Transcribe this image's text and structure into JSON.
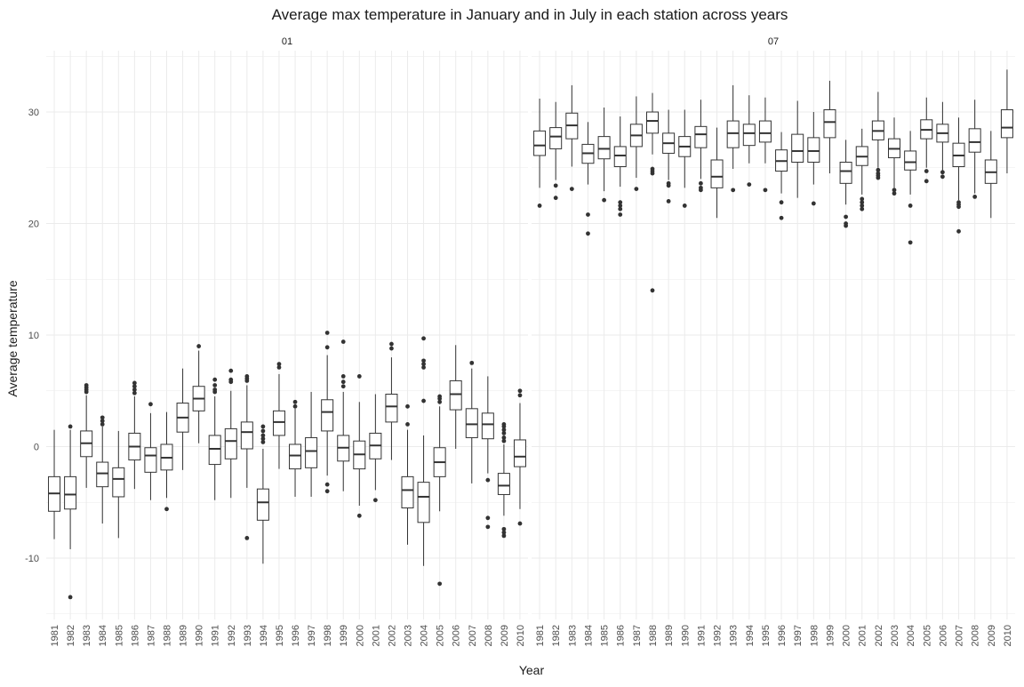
{
  "chart_data": {
    "type": "boxplot",
    "title": "Average max temperature in January and in July in each station across years",
    "xlabel": "Year",
    "ylabel": "Average temperature",
    "ylim": [
      -15.5,
      35.5
    ],
    "yticks": [
      -10,
      0,
      10,
      20,
      30
    ],
    "grid": true,
    "legend": "none",
    "box_color": "#333333",
    "grid_color": "#ebebeb",
    "categories": [
      "1981",
      "1982",
      "1983",
      "1984",
      "1985",
      "1986",
      "1987",
      "1988",
      "1989",
      "1990",
      "1991",
      "1992",
      "1993",
      "1994",
      "1995",
      "1996",
      "1997",
      "1998",
      "1999",
      "2000",
      "2001",
      "2002",
      "2003",
      "2004",
      "2005",
      "2006",
      "2007",
      "2008",
      "2009",
      "2010"
    ],
    "facets": [
      {
        "label": "01",
        "boxes": [
          {
            "year": "1981",
            "min": -8.3,
            "q1": -5.8,
            "median": -4.2,
            "q3": -2.7,
            "max": 1.5,
            "outliers": []
          },
          {
            "year": "1982",
            "min": -9.2,
            "q1": -5.6,
            "median": -4.3,
            "q3": -2.7,
            "max": 1.5,
            "outliers": [
              1.8,
              -13.5
            ]
          },
          {
            "year": "1983",
            "min": -3.7,
            "q1": -0.9,
            "median": 0.3,
            "q3": 1.4,
            "max": 4.6,
            "outliers": [
              5.5,
              5.3,
              5.1,
              4.9
            ]
          },
          {
            "year": "1984",
            "min": -6.9,
            "q1": -3.6,
            "median": -2.4,
            "q3": -1.4,
            "max": 1.8,
            "outliers": [
              2.6,
              2.3,
              2.0
            ]
          },
          {
            "year": "1985",
            "min": -8.2,
            "q1": -4.5,
            "median": -2.9,
            "q3": -1.9,
            "max": 1.4,
            "outliers": []
          },
          {
            "year": "1986",
            "min": -3.8,
            "q1": -1.2,
            "median": 0.0,
            "q3": 1.2,
            "max": 4.5,
            "outliers": [
              5.7,
              5.4,
              5.1,
              4.8
            ]
          },
          {
            "year": "1987",
            "min": -4.8,
            "q1": -2.3,
            "median": -0.8,
            "q3": -0.1,
            "max": 3.0,
            "outliers": [
              3.8
            ]
          },
          {
            "year": "1988",
            "min": -4.6,
            "q1": -2.1,
            "median": -1.0,
            "q3": 0.2,
            "max": 3.1,
            "outliers": [
              -5.6
            ]
          },
          {
            "year": "1989",
            "min": -2.1,
            "q1": 1.3,
            "median": 2.6,
            "q3": 3.9,
            "max": 7.0,
            "outliers": []
          },
          {
            "year": "1990",
            "min": 0.3,
            "q1": 3.2,
            "median": 4.3,
            "q3": 5.4,
            "max": 8.6,
            "outliers": [
              9.0
            ]
          },
          {
            "year": "1991",
            "min": -4.8,
            "q1": -1.6,
            "median": -0.2,
            "q3": 1.0,
            "max": 4.5,
            "outliers": [
              6.0,
              5.5,
              5.1,
              4.9
            ]
          },
          {
            "year": "1992",
            "min": -4.6,
            "q1": -1.1,
            "median": 0.5,
            "q3": 1.6,
            "max": 5.0,
            "outliers": [
              6.8,
              6.0,
              5.8
            ]
          },
          {
            "year": "1993",
            "min": -3.7,
            "q1": -0.2,
            "median": 1.3,
            "q3": 2.2,
            "max": 5.5,
            "outliers": [
              6.3,
              6.1,
              5.9,
              -8.2
            ]
          },
          {
            "year": "1994",
            "min": -10.5,
            "q1": -6.6,
            "median": -5.0,
            "q3": -3.8,
            "max": -0.2,
            "outliers": [
              1.8,
              1.4,
              1.0,
              0.7,
              0.4
            ]
          },
          {
            "year": "1995",
            "min": -2.0,
            "q1": 1.0,
            "median": 2.2,
            "q3": 3.2,
            "max": 6.5,
            "outliers": [
              7.4,
              7.1
            ]
          },
          {
            "year": "1996",
            "min": -4.5,
            "q1": -2.0,
            "median": -0.8,
            "q3": 0.2,
            "max": 3.4,
            "outliers": [
              4.0,
              3.6
            ]
          },
          {
            "year": "1997",
            "min": -4.5,
            "q1": -1.9,
            "median": -0.4,
            "q3": 0.8,
            "max": 4.9,
            "outliers": []
          },
          {
            "year": "1998",
            "min": -2.6,
            "q1": 1.4,
            "median": 3.1,
            "q3": 4.2,
            "max": 8.2,
            "outliers": [
              10.2,
              8.9,
              -3.4,
              -4.0
            ]
          },
          {
            "year": "1999",
            "min": -4.0,
            "q1": -1.3,
            "median": -0.1,
            "q3": 1.0,
            "max": 4.9,
            "outliers": [
              9.4,
              6.3,
              5.8,
              5.4
            ]
          },
          {
            "year": "2000",
            "min": -5.3,
            "q1": -2.0,
            "median": -0.7,
            "q3": 0.5,
            "max": 4.0,
            "outliers": [
              6.3,
              -6.2
            ]
          },
          {
            "year": "2001",
            "min": -3.9,
            "q1": -1.1,
            "median": 0.1,
            "q3": 1.2,
            "max": 4.7,
            "outliers": [
              -4.8
            ]
          },
          {
            "year": "2002",
            "min": -1.2,
            "q1": 2.2,
            "median": 3.6,
            "q3": 4.7,
            "max": 8.0,
            "outliers": [
              9.2,
              8.8
            ]
          },
          {
            "year": "2003",
            "min": -8.8,
            "q1": -5.5,
            "median": -3.9,
            "q3": -2.7,
            "max": 1.5,
            "outliers": [
              3.6,
              2.0
            ]
          },
          {
            "year": "2004",
            "min": -10.7,
            "q1": -6.8,
            "median": -4.5,
            "q3": -3.2,
            "max": 1.0,
            "outliers": [
              9.7,
              7.7,
              7.4,
              7.1,
              4.1
            ]
          },
          {
            "year": "2005",
            "min": -5.8,
            "q1": -2.7,
            "median": -1.4,
            "q3": -0.1,
            "max": 3.6,
            "outliers": [
              4.5,
              4.3,
              4.0,
              -12.3
            ]
          },
          {
            "year": "2006",
            "min": -0.2,
            "q1": 3.3,
            "median": 4.7,
            "q3": 5.9,
            "max": 9.1,
            "outliers": []
          },
          {
            "year": "2007",
            "min": -3.3,
            "q1": 0.8,
            "median": 2.0,
            "q3": 3.4,
            "max": 7.0,
            "outliers": [
              7.5
            ]
          },
          {
            "year": "2008",
            "min": -2.4,
            "q1": 0.7,
            "median": 2.0,
            "q3": 3.0,
            "max": 6.3,
            "outliers": [
              -3.0,
              -6.4,
              -7.2
            ]
          },
          {
            "year": "2009",
            "min": -6.2,
            "q1": -4.3,
            "median": -3.5,
            "q3": -2.4,
            "max": 0.2,
            "outliers": [
              2.0,
              1.8,
              1.5,
              1.2,
              0.8,
              0.5,
              -7.4,
              -7.7,
              -8.0
            ]
          },
          {
            "year": "2010",
            "min": -5.6,
            "q1": -1.8,
            "median": -0.9,
            "q3": 0.6,
            "max": 3.9,
            "outliers": [
              5.0,
              4.6,
              -6.9
            ]
          }
        ]
      },
      {
        "label": "07",
        "boxes": [
          {
            "year": "1981",
            "min": 23.2,
            "q1": 26.1,
            "median": 27.0,
            "q3": 28.3,
            "max": 31.2,
            "outliers": [
              21.6
            ]
          },
          {
            "year": "1982",
            "min": 23.9,
            "q1": 26.7,
            "median": 27.8,
            "q3": 28.6,
            "max": 30.9,
            "outliers": [
              23.4,
              22.3
            ]
          },
          {
            "year": "1983",
            "min": 25.1,
            "q1": 27.6,
            "median": 28.8,
            "q3": 29.9,
            "max": 32.4,
            "outliers": [
              23.1
            ]
          },
          {
            "year": "1984",
            "min": 23.5,
            "q1": 25.4,
            "median": 26.3,
            "q3": 27.1,
            "max": 29.1,
            "outliers": [
              20.8,
              19.1
            ]
          },
          {
            "year": "1985",
            "min": 22.9,
            "q1": 25.8,
            "median": 26.7,
            "q3": 27.8,
            "max": 30.4,
            "outliers": [
              22.1
            ]
          },
          {
            "year": "1986",
            "min": 23.3,
            "q1": 25.1,
            "median": 26.1,
            "q3": 26.9,
            "max": 29.6,
            "outliers": [
              21.9,
              21.6,
              21.3,
              20.8
            ]
          },
          {
            "year": "1987",
            "min": 24.1,
            "q1": 26.9,
            "median": 27.9,
            "q3": 28.9,
            "max": 31.4,
            "outliers": [
              23.1
            ]
          },
          {
            "year": "1988",
            "min": 26.2,
            "q1": 28.1,
            "median": 29.2,
            "q3": 30.0,
            "max": 31.7,
            "outliers": [
              24.9,
              24.7,
              24.5,
              14.0
            ]
          },
          {
            "year": "1989",
            "min": 23.9,
            "q1": 26.3,
            "median": 27.2,
            "q3": 28.1,
            "max": 30.2,
            "outliers": [
              23.6,
              23.4,
              22.0
            ]
          },
          {
            "year": "1990",
            "min": 23.2,
            "q1": 26.0,
            "median": 26.9,
            "q3": 27.8,
            "max": 30.2,
            "outliers": [
              21.6
            ]
          },
          {
            "year": "1991",
            "min": 24.0,
            "q1": 26.8,
            "median": 28.0,
            "q3": 28.7,
            "max": 31.1,
            "outliers": [
              23.6,
              23.2,
              23.0
            ]
          },
          {
            "year": "1992",
            "min": 20.5,
            "q1": 23.2,
            "median": 24.2,
            "q3": 25.7,
            "max": 28.6,
            "outliers": []
          },
          {
            "year": "1993",
            "min": 24.9,
            "q1": 26.8,
            "median": 28.1,
            "q3": 29.2,
            "max": 32.4,
            "outliers": [
              23.0
            ]
          },
          {
            "year": "1994",
            "min": 25.4,
            "q1": 27.0,
            "median": 28.1,
            "q3": 28.9,
            "max": 31.5,
            "outliers": [
              23.5
            ]
          },
          {
            "year": "1995",
            "min": 25.4,
            "q1": 27.3,
            "median": 28.1,
            "q3": 29.2,
            "max": 31.3,
            "outliers": [
              23.0
            ]
          },
          {
            "year": "1996",
            "min": 22.7,
            "q1": 24.7,
            "median": 25.6,
            "q3": 26.6,
            "max": 28.2,
            "outliers": [
              21.9,
              20.5
            ]
          },
          {
            "year": "1997",
            "min": 22.3,
            "q1": 25.5,
            "median": 26.5,
            "q3": 28.0,
            "max": 31.0,
            "outliers": []
          },
          {
            "year": "1998",
            "min": 23.5,
            "q1": 25.5,
            "median": 26.5,
            "q3": 27.7,
            "max": 30.0,
            "outliers": [
              21.8
            ]
          },
          {
            "year": "1999",
            "min": 24.5,
            "q1": 27.7,
            "median": 29.1,
            "q3": 30.2,
            "max": 32.8,
            "outliers": []
          },
          {
            "year": "2000",
            "min": 21.7,
            "q1": 23.6,
            "median": 24.7,
            "q3": 25.5,
            "max": 27.5,
            "outliers": [
              20.6,
              20.0,
              19.8
            ]
          },
          {
            "year": "2001",
            "min": 22.6,
            "q1": 25.2,
            "median": 26.0,
            "q3": 26.9,
            "max": 28.5,
            "outliers": [
              22.2,
              21.9,
              21.6,
              21.3
            ]
          },
          {
            "year": "2002",
            "min": 25.0,
            "q1": 27.5,
            "median": 28.3,
            "q3": 29.2,
            "max": 31.8,
            "outliers": [
              24.8,
              24.5,
              24.3,
              24.1
            ]
          },
          {
            "year": "2003",
            "min": 23.1,
            "q1": 25.9,
            "median": 26.7,
            "q3": 27.6,
            "max": 29.5,
            "outliers": [
              23.0,
              22.7
            ]
          },
          {
            "year": "2004",
            "min": 22.6,
            "q1": 24.8,
            "median": 25.5,
            "q3": 26.5,
            "max": 28.3,
            "outliers": [
              21.6,
              18.3
            ]
          },
          {
            "year": "2005",
            "min": 25.0,
            "q1": 27.6,
            "median": 28.4,
            "q3": 29.3,
            "max": 31.3,
            "outliers": [
              24.7,
              23.8
            ]
          },
          {
            "year": "2006",
            "min": 24.6,
            "q1": 27.3,
            "median": 28.1,
            "q3": 28.9,
            "max": 30.9,
            "outliers": [
              24.6,
              24.2
            ]
          },
          {
            "year": "2007",
            "min": 22.1,
            "q1": 25.1,
            "median": 26.1,
            "q3": 27.2,
            "max": 29.5,
            "outliers": [
              21.9,
              21.7,
              21.5,
              19.3
            ]
          },
          {
            "year": "2008",
            "min": 22.7,
            "q1": 26.4,
            "median": 27.3,
            "q3": 28.5,
            "max": 31.1,
            "outliers": [
              22.4
            ]
          },
          {
            "year": "2009",
            "min": 20.5,
            "q1": 23.6,
            "median": 24.6,
            "q3": 25.7,
            "max": 28.3,
            "outliers": []
          },
          {
            "year": "2010",
            "min": 24.5,
            "q1": 27.7,
            "median": 28.6,
            "q3": 30.2,
            "max": 33.8,
            "outliers": []
          }
        ]
      }
    ]
  }
}
